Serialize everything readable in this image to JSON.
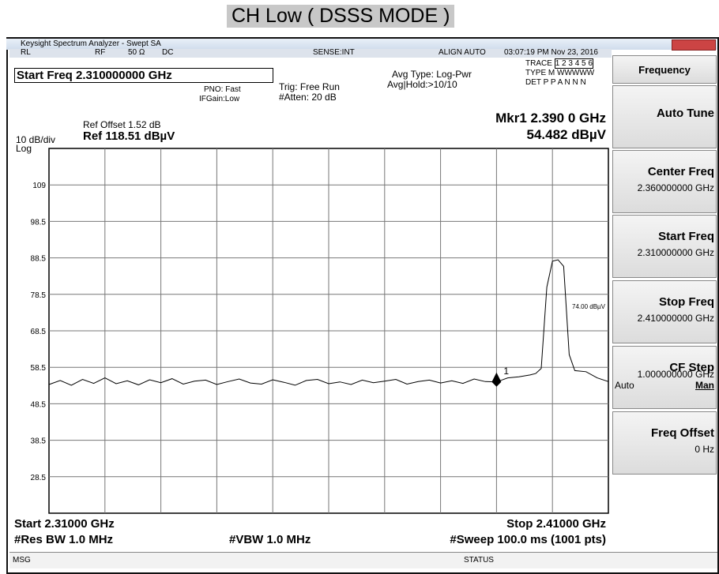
{
  "header": {
    "title": "CH Low ( DSSS MODE )"
  },
  "window": {
    "title": "Keysight Spectrum Analyzer - Swept SA"
  },
  "status_bar": {
    "rl": "RL",
    "rf": "RF",
    "impedance": "50 Ω",
    "coupling": "DC",
    "sense": "SENSE:INT",
    "align": "ALIGN AUTO",
    "time": "03:07:19 PM Nov 23, 2016"
  },
  "info": {
    "start_freq": "Start Freq 2.310000000 GHz",
    "pno": "PNO: Fast",
    "ifgain": "IFGain:Low",
    "trig": "Trig: Free Run",
    "atten": "#Atten: 20 dB",
    "avg_type": "Avg Type: Log-Pwr",
    "avg_hold": "Avg|Hold:>10/10",
    "trace_row": [
      "TRACE",
      "1 2 3 4 5 6"
    ],
    "type_row": [
      "TYPE",
      "M WWWWW"
    ],
    "det_row": [
      "DET",
      "P P A N N N"
    ],
    "ref_offset": "Ref Offset 1.52 dB",
    "ref_level": "Ref 118.51 dBµV",
    "scale": "10 dB/div",
    "scale_type": "Log"
  },
  "marker": {
    "label": "Mkr1 2.390 0 GHz",
    "value_label": "54.482 dBµV",
    "number": "1",
    "x": 2.39,
    "y": 54.482
  },
  "plot": {
    "xlim": [
      2.31,
      2.41
    ],
    "ylim": [
      18.51,
      118.51
    ],
    "yticks": [
      {
        "value": 108.51,
        "label": "109"
      },
      {
        "value": 98.51,
        "label": "98.5"
      },
      {
        "value": 88.51,
        "label": "88.5"
      },
      {
        "value": 78.51,
        "label": "78.5"
      },
      {
        "value": 68.51,
        "label": "68.5"
      },
      {
        "value": 58.51,
        "label": "58.5"
      },
      {
        "value": 48.51,
        "label": "48.5"
      },
      {
        "value": 38.51,
        "label": "38.5"
      },
      {
        "value": 28.51,
        "label": "28.5"
      }
    ],
    "display_line_label": "74.00 dBµV",
    "trace": {
      "x": [
        2.31,
        2.312,
        2.314,
        2.316,
        2.318,
        2.32,
        2.322,
        2.324,
        2.326,
        2.328,
        2.33,
        2.332,
        2.334,
        2.336,
        2.338,
        2.34,
        2.342,
        2.344,
        2.346,
        2.348,
        2.35,
        2.352,
        2.354,
        2.356,
        2.358,
        2.36,
        2.362,
        2.364,
        2.366,
        2.368,
        2.37,
        2.372,
        2.374,
        2.376,
        2.378,
        2.38,
        2.382,
        2.384,
        2.386,
        2.388,
        2.39,
        2.392,
        2.394,
        2.396,
        2.397,
        2.398,
        2.399,
        2.4,
        2.401,
        2.402,
        2.403,
        2.404,
        2.406,
        2.408,
        2.41
      ],
      "values": [
        53.8,
        54.9,
        53.6,
        55.2,
        54.1,
        55.6,
        54.0,
        54.8,
        53.7,
        55.1,
        54.3,
        55.4,
        53.9,
        54.7,
        55.0,
        53.8,
        54.6,
        55.3,
        54.2,
        53.9,
        55.1,
        54.4,
        53.6,
        54.9,
        55.2,
        54.0,
        54.5,
        53.8,
        55.0,
        54.3,
        54.7,
        55.2,
        53.9,
        54.6,
        55.0,
        54.2,
        54.8,
        54.1,
        55.3,
        54.6,
        54.48,
        55.6,
        55.9,
        56.4,
        56.8,
        58.2,
        80.5,
        87.6,
        88.0,
        86.2,
        62.0,
        57.6,
        57.3,
        55.6,
        54.6
      ]
    }
  },
  "footer": {
    "start": "Start 2.31000 GHz",
    "stop": "Stop 2.41000 GHz",
    "rbw": "#Res BW 1.0 MHz",
    "vbw": "#VBW 1.0 MHz",
    "sweep": "#Sweep  100.0 ms (1001 pts)",
    "msg": "MSG",
    "status": "STATUS"
  },
  "menu": {
    "title": "Frequency",
    "items": [
      {
        "label": "Auto Tune"
      },
      {
        "label": "Center Freq",
        "value": "2.360000000 GHz"
      },
      {
        "label": "Start Freq",
        "value": "2.310000000 GHz"
      },
      {
        "label": "Stop Freq",
        "value": "2.410000000 GHz"
      },
      {
        "label": "CF Step",
        "value": "1.000000000 GHz",
        "auto": "Auto",
        "man": "Man"
      },
      {
        "label": "Freq Offset",
        "value": "0 Hz"
      }
    ]
  }
}
